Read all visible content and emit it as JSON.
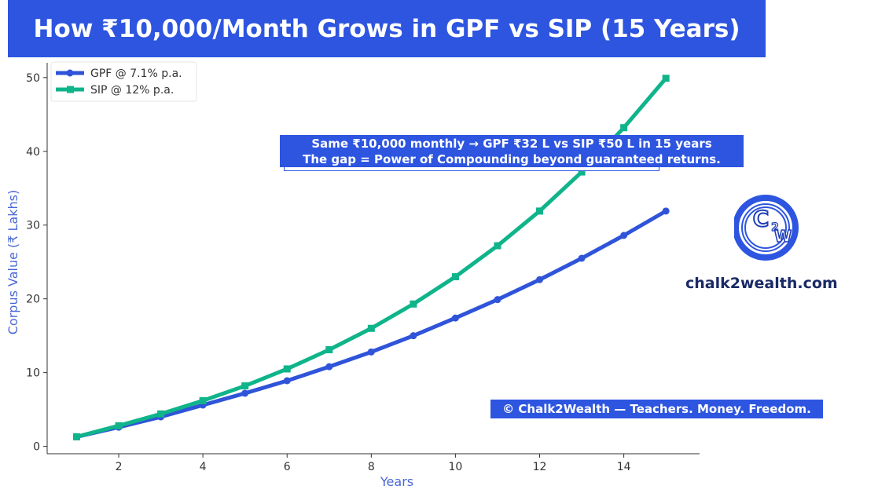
{
  "header": {
    "title": "How ₹10,000/Month Grows in GPF vs SIP (15 Years)"
  },
  "annotation": {
    "line1": "Same ₹10,000 monthly → GPF ₹32 L vs SIP ₹50 L in 15 years",
    "line2": "The gap = Power of Compounding beyond guaranteed returns."
  },
  "brand": {
    "logo_text": "C2W",
    "site": "chalk2wealth.com"
  },
  "footer": {
    "copyright": "© Chalk2Wealth — Teachers. Money. Freedom."
  },
  "colors": {
    "gpf": "#2f54d9",
    "sip": "#0fb48a",
    "accent": "#2d55e0",
    "axis_label": "#4a67d6"
  },
  "chart_data": {
    "type": "line",
    "title": "How ₹10,000/Month Grows in GPF vs SIP (15 Years)",
    "xlabel": "Years",
    "ylabel": "Corpus Value (₹ Lakhs)",
    "x": [
      1,
      2,
      3,
      4,
      5,
      6,
      7,
      8,
      9,
      10,
      11,
      12,
      13,
      14,
      15
    ],
    "series": [
      {
        "name": "GPF @ 7.1% p.a.",
        "marker": "circle",
        "values": [
          1.3,
          2.6,
          4.0,
          5.6,
          7.2,
          8.9,
          10.8,
          12.8,
          15.0,
          17.4,
          19.9,
          22.6,
          25.5,
          28.6,
          31.9
        ]
      },
      {
        "name": "SIP @ 12% p.a.",
        "marker": "square",
        "values": [
          1.3,
          2.8,
          4.4,
          6.2,
          8.2,
          10.5,
          13.1,
          16.0,
          19.3,
          23.0,
          27.2,
          31.9,
          37.2,
          43.2,
          49.9
        ]
      }
    ],
    "xlim": [
      0.3,
      15.8
    ],
    "ylim": [
      -1,
      52
    ],
    "xticks": [
      2,
      4,
      6,
      8,
      10,
      12,
      14
    ],
    "yticks": [
      0,
      10,
      20,
      30,
      40,
      50
    ],
    "legend": "top-left",
    "grid": false
  }
}
